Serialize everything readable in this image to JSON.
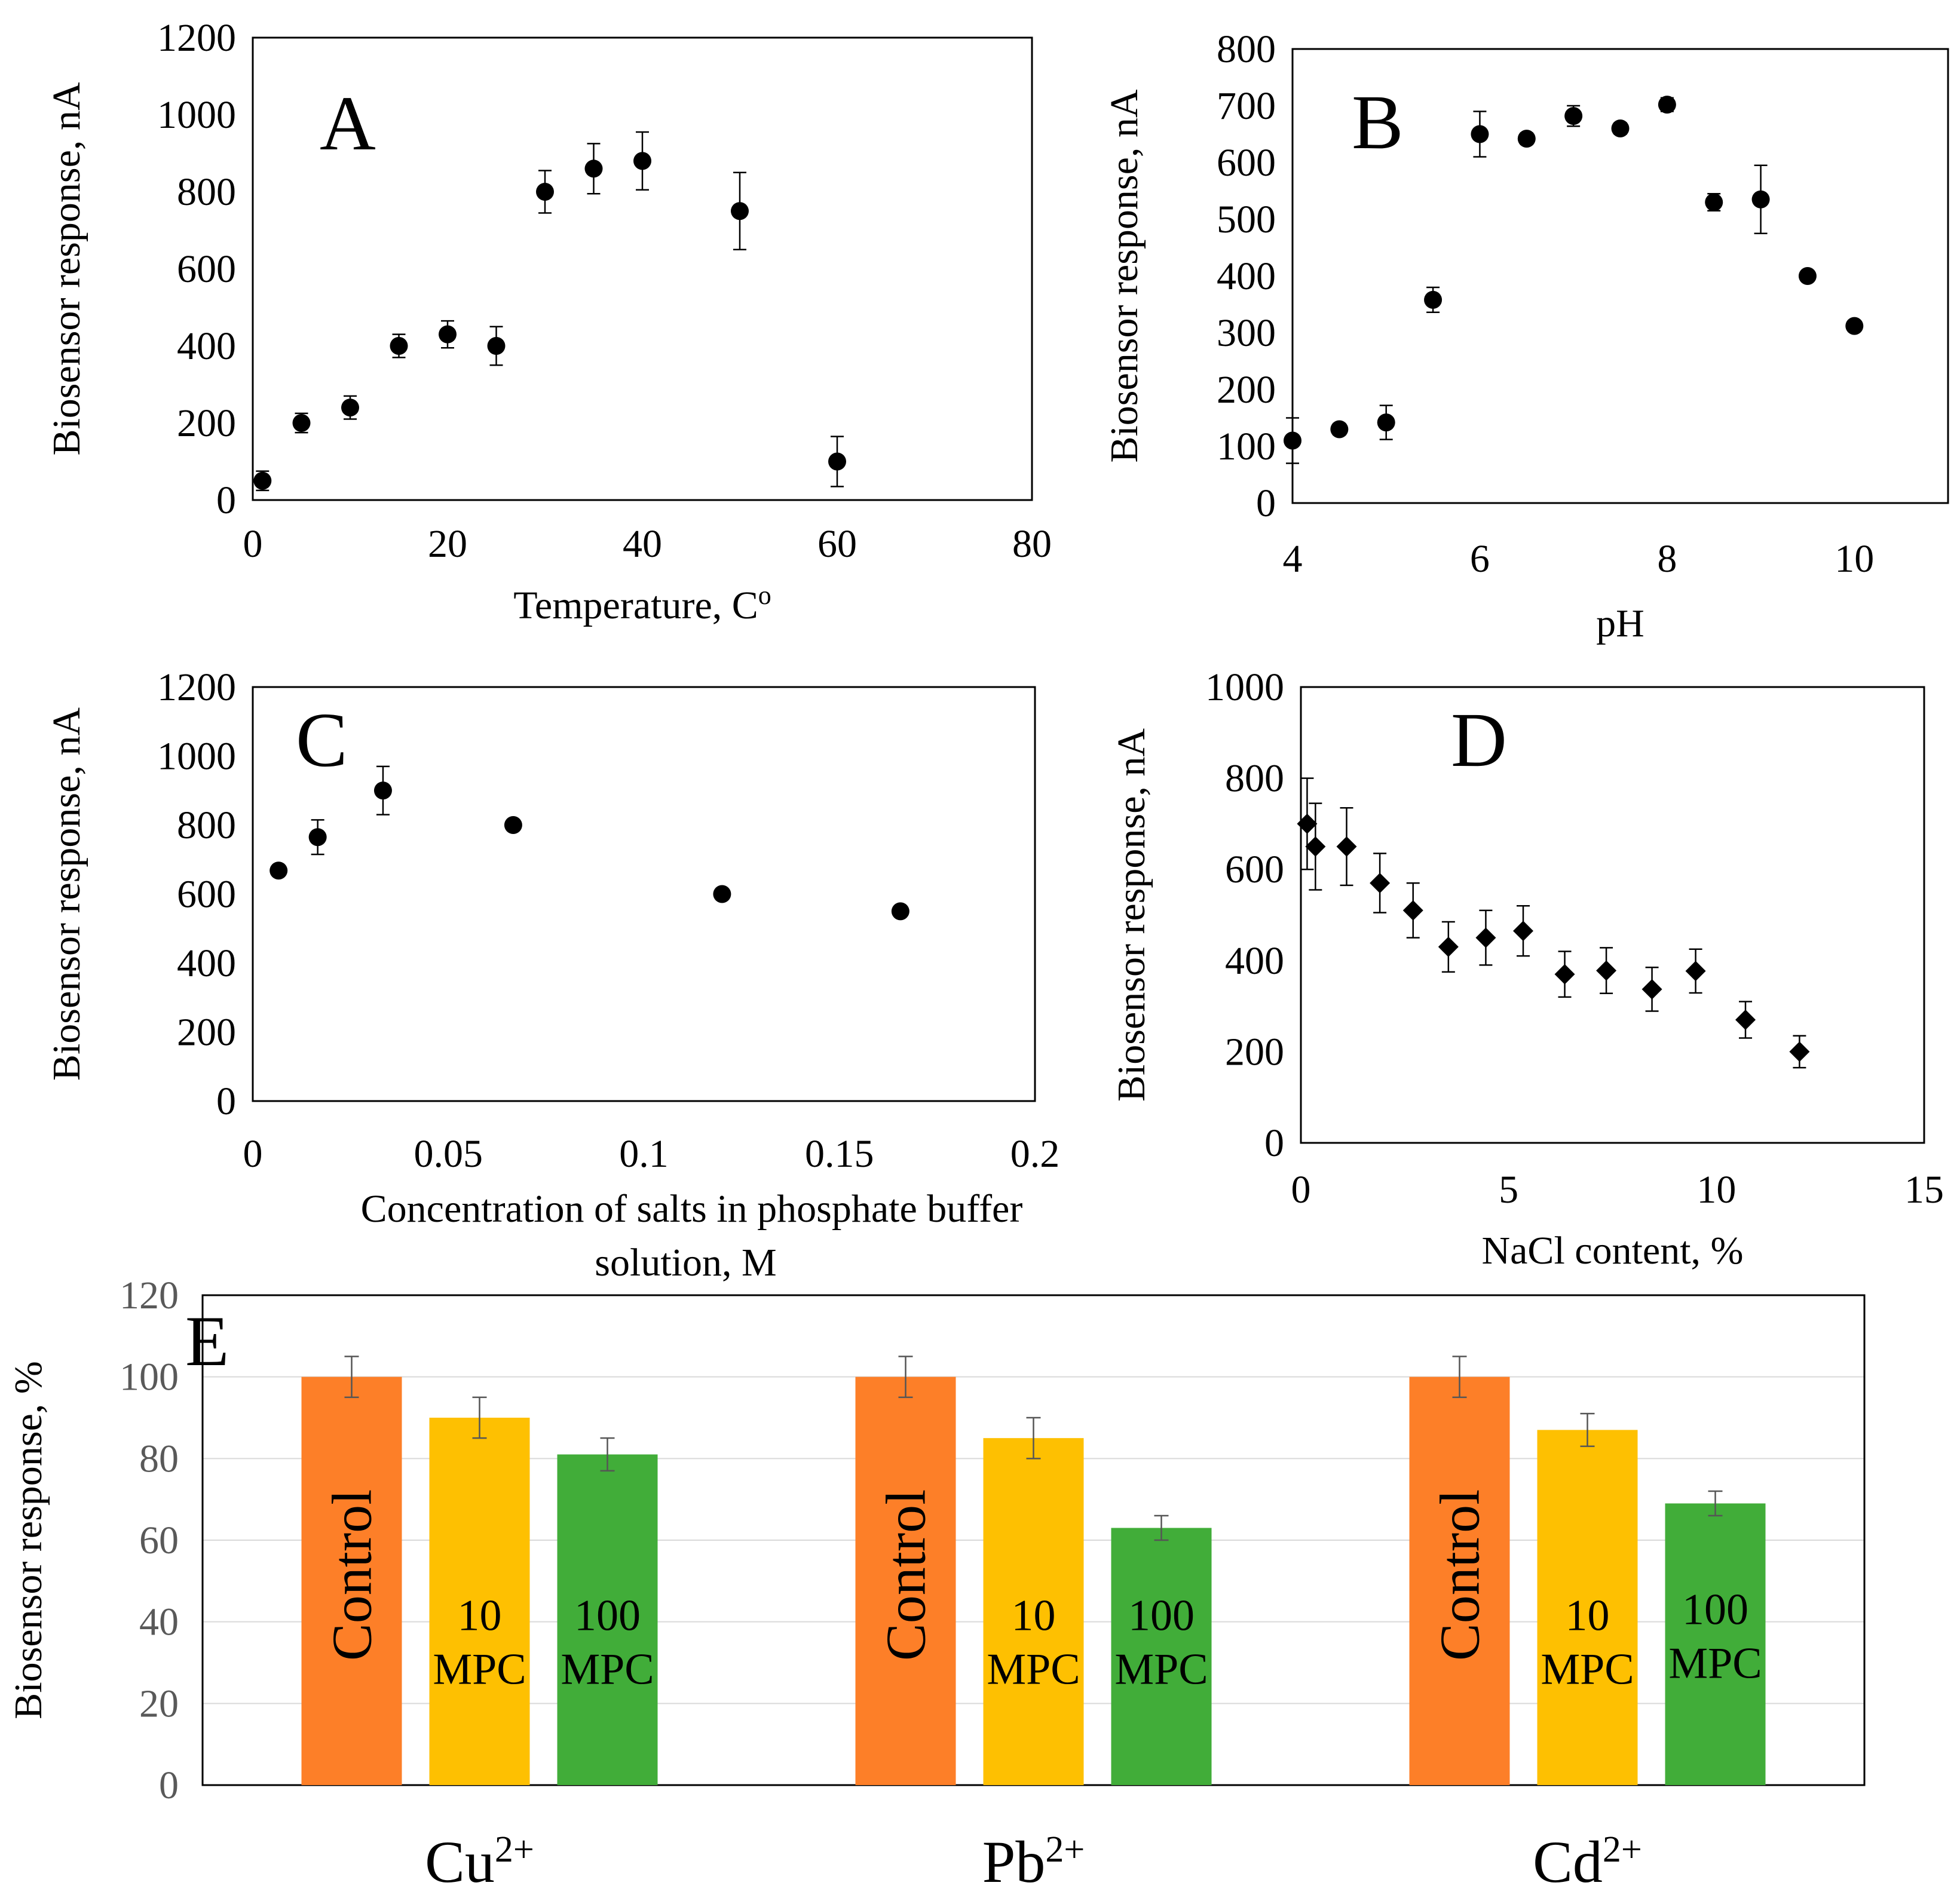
{
  "colors": {
    "axis": "#000000",
    "marker": "#000000",
    "grid": "#d9d9d9",
    "control": "#fd7f28",
    "mpc10": "#fec001",
    "mpc100": "#41ad39",
    "axis_text_e": "#595959"
  },
  "chart_data": [
    {
      "id": "A",
      "type": "scatter",
      "panel_label": "A",
      "xlabel": "Temperature, C",
      "xlabel_sup": "o",
      "ylabel": "Biosensor response, nA",
      "xlim": [
        0,
        80
      ],
      "ylim": [
        0,
        1200
      ],
      "xticks": [
        0,
        20,
        40,
        60,
        80
      ],
      "yticks": [
        0,
        200,
        400,
        600,
        800,
        1000,
        1200
      ],
      "marker": "circle",
      "points": [
        {
          "x": 1,
          "y": 50,
          "err": 25
        },
        {
          "x": 5,
          "y": 200,
          "err": 25
        },
        {
          "x": 10,
          "y": 240,
          "err": 30
        },
        {
          "x": 15,
          "y": 400,
          "err": 30
        },
        {
          "x": 20,
          "y": 430,
          "err": 35
        },
        {
          "x": 25,
          "y": 400,
          "err": 50
        },
        {
          "x": 30,
          "y": 800,
          "err": 55
        },
        {
          "x": 35,
          "y": 860,
          "err": 65
        },
        {
          "x": 40,
          "y": 880,
          "err": 75
        },
        {
          "x": 50,
          "y": 750,
          "err": 100
        },
        {
          "x": 60,
          "y": 100,
          "err": 65
        }
      ]
    },
    {
      "id": "B",
      "type": "scatter",
      "panel_label": "B",
      "xlabel": "pH",
      "ylabel": "Biosensor response, nA",
      "xlim": [
        4,
        11
      ],
      "ylim": [
        0,
        800
      ],
      "xticks": [
        4,
        6,
        8,
        10
      ],
      "yticks": [
        0,
        100,
        200,
        300,
        400,
        500,
        600,
        700,
        800
      ],
      "marker": "circle",
      "points": [
        {
          "x": 4,
          "y": 110,
          "err": 40
        },
        {
          "x": 4.5,
          "y": 130,
          "err": 10
        },
        {
          "x": 5,
          "y": 142,
          "err": 30
        },
        {
          "x": 5.5,
          "y": 358,
          "err": 22
        },
        {
          "x": 6,
          "y": 650,
          "err": 40
        },
        {
          "x": 6.5,
          "y": 642,
          "err": 10
        },
        {
          "x": 7,
          "y": 682,
          "err": 18
        },
        {
          "x": 7.5,
          "y": 660,
          "err": 10
        },
        {
          "x": 8,
          "y": 702,
          "err": 12
        },
        {
          "x": 8.5,
          "y": 530,
          "err": 15
        },
        {
          "x": 9,
          "y": 535,
          "err": 60
        },
        {
          "x": 9.5,
          "y": 400,
          "err": 5
        },
        {
          "x": 10,
          "y": 312,
          "err": 5
        }
      ]
    },
    {
      "id": "C",
      "type": "scatter",
      "panel_label": "C",
      "xlabel": "Concentration of salts in phosphate buffer",
      "xlabel2": "solution, M",
      "ylabel": "Biosensor response, nA",
      "xlim": [
        0,
        0.2
      ],
      "ylim": [
        0,
        1200
      ],
      "xticks": [
        0,
        0.05,
        0.1,
        0.15,
        0.2
      ],
      "ytick_labels_x": [
        "0",
        "0.05",
        "0.1",
        "0.15",
        "0.2"
      ],
      "yticks": [
        0,
        200,
        400,
        600,
        800,
        1000,
        1200
      ],
      "marker": "circle",
      "points": [
        {
          "x": 0.0066,
          "y": 668,
          "err": 10
        },
        {
          "x": 0.0166,
          "y": 765,
          "err": 50
        },
        {
          "x": 0.0333,
          "y": 900,
          "err": 70
        },
        {
          "x": 0.0666,
          "y": 800,
          "err": 5
        },
        {
          "x": 0.12,
          "y": 600,
          "err": 5
        },
        {
          "x": 0.1656,
          "y": 550,
          "err": 5
        }
      ]
    },
    {
      "id": "D",
      "type": "scatter",
      "panel_label": "D",
      "xlabel": "NaCl content, %",
      "ylabel": "Biosensor response, nA",
      "xlim": [
        0,
        15
      ],
      "ylim": [
        0,
        1000
      ],
      "xticks": [
        0,
        5,
        10,
        15
      ],
      "yticks": [
        0,
        200,
        400,
        600,
        800,
        1000
      ],
      "marker": "diamond",
      "points": [
        {
          "x": 0.15,
          "y": 700,
          "err": 100
        },
        {
          "x": 0.35,
          "y": 650,
          "err": 95
        },
        {
          "x": 1.1,
          "y": 650,
          "err": 85
        },
        {
          "x": 1.9,
          "y": 570,
          "err": 65
        },
        {
          "x": 2.7,
          "y": 510,
          "err": 60
        },
        {
          "x": 3.55,
          "y": 430,
          "err": 55
        },
        {
          "x": 4.45,
          "y": 450,
          "err": 60
        },
        {
          "x": 5.35,
          "y": 465,
          "err": 55
        },
        {
          "x": 6.35,
          "y": 370,
          "err": 50
        },
        {
          "x": 7.35,
          "y": 378,
          "err": 50
        },
        {
          "x": 8.45,
          "y": 337,
          "err": 48
        },
        {
          "x": 9.5,
          "y": 377,
          "err": 48
        },
        {
          "x": 10.7,
          "y": 270,
          "err": 40
        },
        {
          "x": 12,
          "y": 200,
          "err": 35
        }
      ]
    },
    {
      "id": "E",
      "type": "bar",
      "panel_label": "E",
      "ylabel": "Biosensor response, %",
      "ylim": [
        0,
        120
      ],
      "yticks": [
        0,
        20,
        40,
        60,
        80,
        100,
        120
      ],
      "grid": true,
      "categories": [
        {
          "base": "Cu",
          "sup": "2+"
        },
        {
          "base": "Pb",
          "sup": "2+"
        },
        {
          "base": "Cd",
          "sup": "2+"
        }
      ],
      "series": [
        {
          "name": "Control",
          "label_lines": [
            "Control"
          ],
          "values": [
            100,
            100,
            100
          ],
          "errors": [
            5,
            5,
            5
          ]
        },
        {
          "name": "10 MPC",
          "label_lines": [
            "10",
            "MPC"
          ],
          "values": [
            90,
            85,
            87
          ],
          "errors": [
            5,
            5,
            4
          ]
        },
        {
          "name": "100 MPC",
          "label_lines": [
            "100",
            "MPC"
          ],
          "values": [
            81,
            63,
            69
          ],
          "errors": [
            4,
            3,
            3
          ]
        }
      ]
    }
  ]
}
